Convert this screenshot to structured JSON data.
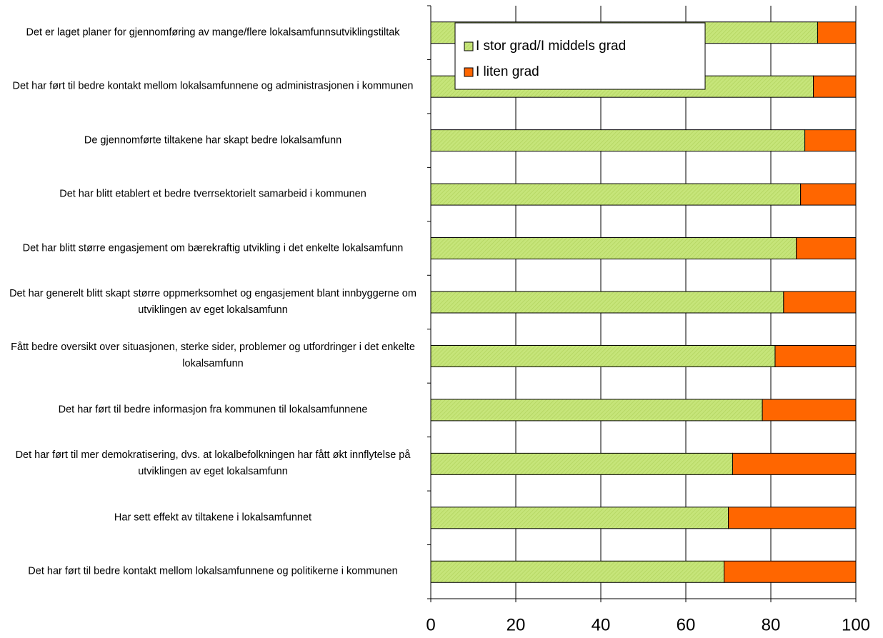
{
  "chart_data": {
    "type": "stacked-barh",
    "categories": [
      "Det er laget planer for gjennomføring av mange/flere lokalsamfunnsutviklingstiltak",
      "Det har ført til bedre kontakt mellom lokalsamfunnene og administrasjonen i kommunen",
      "De gjennomførte tiltakene har skapt bedre lokalsamfunn",
      "Det har blitt etablert et bedre tverrsektorielt samarbeid i kommunen",
      "Det har blitt større engasjement om bærekraftig utvikling i det enkelte lokalsamfunn",
      "Det har generelt blitt skapt større oppmerksomhet og engasjement blant innbyggerne om utviklingen av eget lokalsamfunn",
      "Fått bedre oversikt over situasjonen, sterke sider, problemer og utfordringer i det enkelte lokalsamfunn",
      "Det har ført til bedre informasjon fra kommunen til lokalsamfunnene",
      "Det har ført til mer demokratisering, dvs. at lokalbefolkningen har fått økt innflytelse på utviklingen av eget lokalsamfunn",
      "Har sett effekt av tiltakene i lokalsamfunnet",
      "Det har ført til bedre kontakt mellom lokalsamfunnene og politikerne i kommunen"
    ],
    "series": [
      {
        "name": "I stor grad/I middels grad",
        "color": "#c6e57a",
        "values": [
          91,
          90,
          88,
          87,
          86,
          83,
          81,
          78,
          71,
          70,
          69
        ]
      },
      {
        "name": "I liten grad",
        "color": "#ff6600",
        "values": [
          9,
          10,
          12,
          13,
          14,
          17,
          19,
          22,
          29,
          30,
          31
        ]
      }
    ],
    "xlim": [
      0,
      100
    ],
    "xticks": [
      0,
      20,
      40,
      60,
      80,
      100
    ],
    "grid": true,
    "legend": "top"
  }
}
